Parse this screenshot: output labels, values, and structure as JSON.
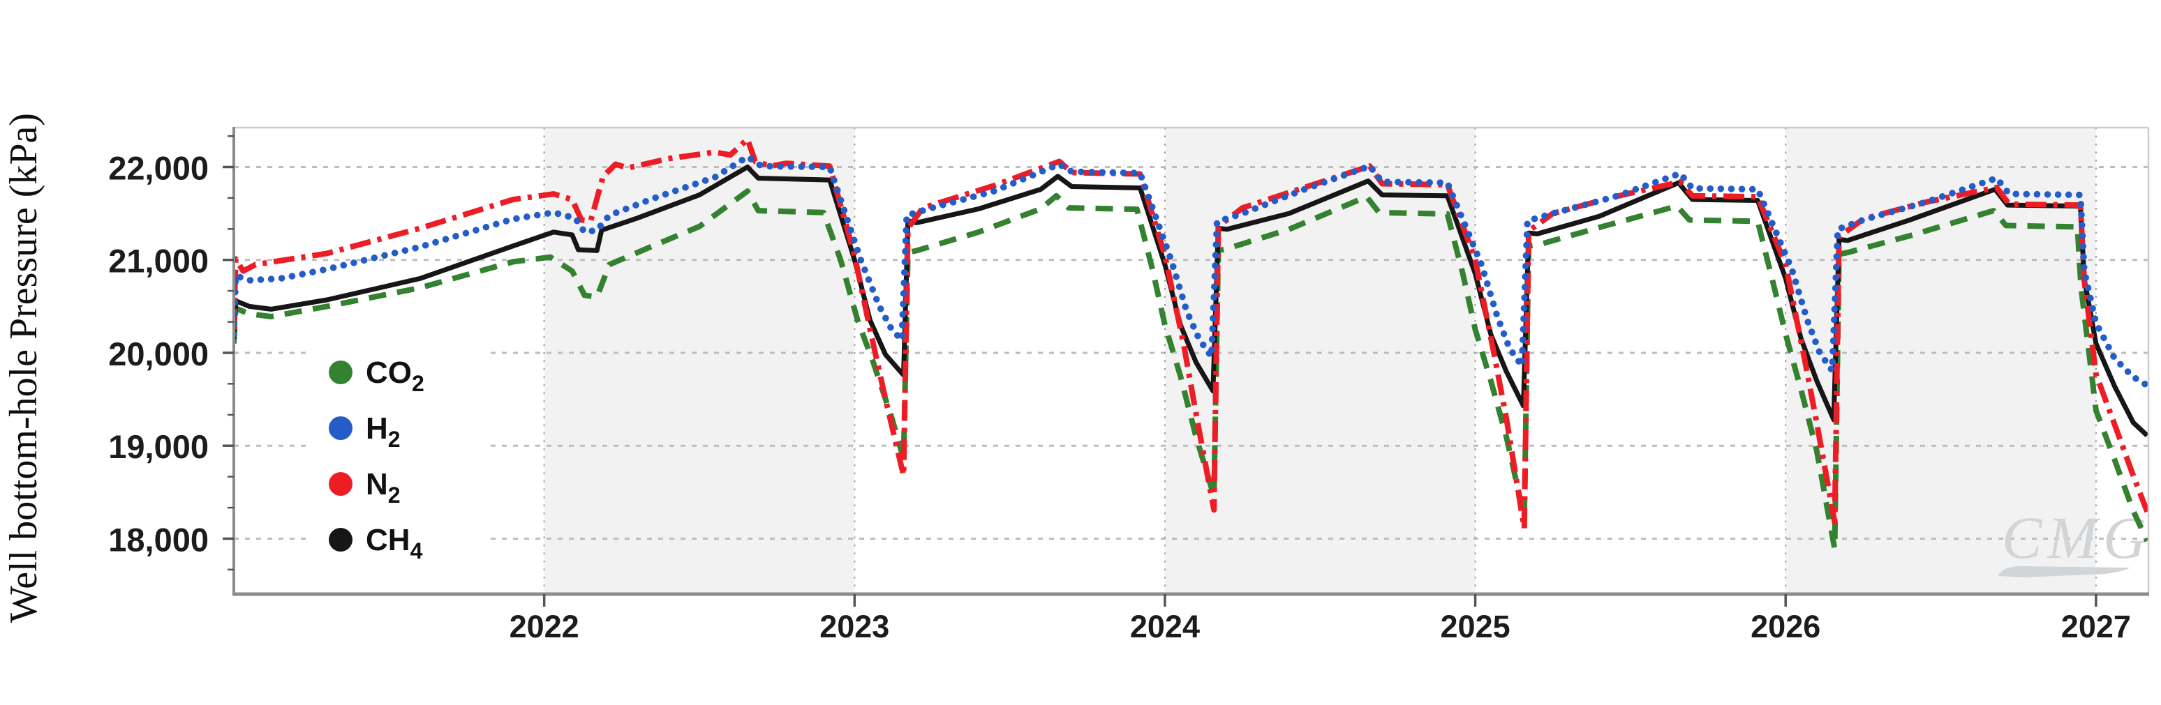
{
  "figure": {
    "y_axis_title": "Well bottom-hole Pressure (kPa)",
    "watermark_text": "CMG",
    "watermark_color": "#d2d5d8",
    "background": "#ffffff",
    "plot_background": "#ffffff",
    "band_color": "#f2f2f2",
    "h_grid_color": "#bdbdbd",
    "v_grid_color": "#9e9e9e",
    "spine_dark": "#8c8c8c",
    "spine_light": "#cccccc",
    "tick_color": "#555555"
  },
  "chart_data": {
    "type": "line",
    "title": "",
    "xlabel": "",
    "ylabel": "Well bottom-hole Pressure (kPa)",
    "x_domain": [
      2021.0,
      2027.169
    ],
    "y_domain": [
      17403,
      22424
    ],
    "x_ticks": [
      {
        "value": 2022,
        "label": "2022"
      },
      {
        "value": 2023,
        "label": "2023"
      },
      {
        "value": 2024,
        "label": "2024"
      },
      {
        "value": 2025,
        "label": "2025"
      },
      {
        "value": 2026,
        "label": "2026"
      },
      {
        "value": 2027,
        "label": "2027"
      }
    ],
    "y_ticks": [
      {
        "value": 18000,
        "label": "18,000"
      },
      {
        "value": 19000,
        "label": "19,000"
      },
      {
        "value": 20000,
        "label": "20,000"
      },
      {
        "value": 21000,
        "label": "21,000"
      },
      {
        "value": 22000,
        "label": "22,000"
      }
    ],
    "y_minor_ticks": [
      17667,
      18333,
      18667,
      19333,
      19667,
      20333,
      20667,
      21333,
      21667,
      22333
    ],
    "grid": {
      "horizontal": true,
      "vertical": true
    },
    "shaded_year_bands": [
      [
        2022,
        2023
      ],
      [
        2024,
        2025
      ],
      [
        2026,
        2027
      ]
    ],
    "legend_position": "inside-left-middle",
    "legend": [
      {
        "id": "co2",
        "base": "CO",
        "sub": "2",
        "color": "#348230"
      },
      {
        "id": "h2",
        "base": "H",
        "sub": "2",
        "color": "#245cc8"
      },
      {
        "id": "n2",
        "base": "N",
        "sub": "2",
        "color": "#ee1c24"
      },
      {
        "id": "ch4",
        "base": "CH",
        "sub": "4",
        "color": "#161616"
      }
    ],
    "series": [
      {
        "id": "co2",
        "name": "CO2",
        "color": "#348230",
        "line_style": "dashed",
        "points": [
          [
            2021.0,
            20100
          ],
          [
            2021.006,
            20480
          ],
          [
            2021.05,
            20420
          ],
          [
            2021.12,
            20390
          ],
          [
            2021.3,
            20500
          ],
          [
            2021.6,
            20700
          ],
          [
            2021.9,
            20980
          ],
          [
            2022.02,
            21030
          ],
          [
            2022.09,
            20880
          ],
          [
            2022.13,
            20620
          ],
          [
            2022.17,
            20600
          ],
          [
            2022.21,
            20950
          ],
          [
            2022.35,
            21150
          ],
          [
            2022.5,
            21360
          ],
          [
            2022.655,
            21740
          ],
          [
            2022.69,
            21530
          ],
          [
            2022.9,
            21510
          ],
          [
            2022.955,
            21000
          ],
          [
            2023.01,
            20350
          ],
          [
            2023.06,
            19900
          ],
          [
            2023.12,
            19300
          ],
          [
            2023.158,
            18860
          ],
          [
            2023.172,
            21080
          ],
          [
            2023.2,
            21100
          ],
          [
            2023.4,
            21300
          ],
          [
            2023.6,
            21550
          ],
          [
            2023.65,
            21690
          ],
          [
            2023.69,
            21560
          ],
          [
            2023.91,
            21545
          ],
          [
            2023.96,
            20900
          ],
          [
            2024.0,
            20300
          ],
          [
            2024.05,
            19750
          ],
          [
            2024.1,
            19100
          ],
          [
            2024.158,
            18460
          ],
          [
            2024.172,
            21100
          ],
          [
            2024.2,
            21120
          ],
          [
            2024.4,
            21330
          ],
          [
            2024.65,
            21680
          ],
          [
            2024.69,
            21510
          ],
          [
            2024.91,
            21495
          ],
          [
            2024.96,
            20850
          ],
          [
            2025.0,
            20250
          ],
          [
            2025.05,
            19700
          ],
          [
            2025.1,
            19100
          ],
          [
            2025.158,
            18230
          ],
          [
            2025.172,
            21150
          ],
          [
            2025.2,
            21160
          ],
          [
            2025.4,
            21350
          ],
          [
            2025.65,
            21580
          ],
          [
            2025.69,
            21430
          ],
          [
            2025.91,
            21415
          ],
          [
            2025.96,
            20750
          ],
          [
            2026.0,
            20200
          ],
          [
            2026.05,
            19600
          ],
          [
            2026.1,
            18950
          ],
          [
            2026.158,
            17890
          ],
          [
            2026.172,
            21060
          ],
          [
            2026.2,
            21080
          ],
          [
            2026.4,
            21260
          ],
          [
            2026.67,
            21530
          ],
          [
            2026.71,
            21370
          ],
          [
            2026.94,
            21355
          ],
          [
            2026.952,
            20700
          ],
          [
            2027.0,
            19380
          ],
          [
            2027.06,
            18850
          ],
          [
            2027.12,
            18300
          ],
          [
            2027.165,
            17975
          ]
        ]
      },
      {
        "id": "ch4",
        "name": "CH4",
        "color": "#161616",
        "line_style": "solid",
        "points": [
          [
            2021.0,
            20150
          ],
          [
            2021.006,
            20560
          ],
          [
            2021.05,
            20500
          ],
          [
            2021.12,
            20470
          ],
          [
            2021.3,
            20570
          ],
          [
            2021.6,
            20800
          ],
          [
            2021.9,
            21150
          ],
          [
            2022.03,
            21300
          ],
          [
            2022.09,
            21270
          ],
          [
            2022.11,
            21110
          ],
          [
            2022.17,
            21100
          ],
          [
            2022.185,
            21320
          ],
          [
            2022.3,
            21450
          ],
          [
            2022.5,
            21700
          ],
          [
            2022.655,
            22000
          ],
          [
            2022.69,
            21880
          ],
          [
            2022.92,
            21860
          ],
          [
            2023.0,
            21000
          ],
          [
            2023.05,
            20350
          ],
          [
            2023.1,
            19980
          ],
          [
            2023.158,
            19760
          ],
          [
            2023.172,
            21420
          ],
          [
            2023.2,
            21400
          ],
          [
            2023.4,
            21550
          ],
          [
            2023.6,
            21760
          ],
          [
            2023.655,
            21900
          ],
          [
            2023.7,
            21790
          ],
          [
            2023.92,
            21775
          ],
          [
            2024.0,
            20950
          ],
          [
            2024.05,
            20300
          ],
          [
            2024.1,
            19900
          ],
          [
            2024.155,
            19590
          ],
          [
            2024.172,
            21340
          ],
          [
            2024.2,
            21330
          ],
          [
            2024.4,
            21500
          ],
          [
            2024.655,
            21850
          ],
          [
            2024.7,
            21700
          ],
          [
            2024.91,
            21690
          ],
          [
            2025.0,
            20850
          ],
          [
            2025.05,
            20200
          ],
          [
            2025.1,
            19800
          ],
          [
            2025.155,
            19430
          ],
          [
            2025.172,
            21290
          ],
          [
            2025.2,
            21280
          ],
          [
            2025.4,
            21470
          ],
          [
            2025.655,
            21830
          ],
          [
            2025.7,
            21650
          ],
          [
            2025.91,
            21640
          ],
          [
            2026.0,
            20800
          ],
          [
            2026.05,
            20150
          ],
          [
            2026.1,
            19700
          ],
          [
            2026.155,
            19280
          ],
          [
            2026.172,
            21220
          ],
          [
            2026.2,
            21210
          ],
          [
            2026.4,
            21430
          ],
          [
            2026.675,
            21760
          ],
          [
            2026.715,
            21590
          ],
          [
            2026.95,
            21580
          ],
          [
            2026.962,
            20800
          ],
          [
            2027.0,
            20100
          ],
          [
            2027.06,
            19640
          ],
          [
            2027.12,
            19250
          ],
          [
            2027.165,
            19110
          ]
        ]
      },
      {
        "id": "n2",
        "name": "N2",
        "color": "#ee1c24",
        "line_style": "dashdot",
        "points": [
          [
            2021.0,
            20250
          ],
          [
            2021.006,
            21010
          ],
          [
            2021.03,
            20880
          ],
          [
            2021.07,
            20950
          ],
          [
            2021.3,
            21070
          ],
          [
            2021.6,
            21340
          ],
          [
            2021.9,
            21650
          ],
          [
            2022.03,
            21710
          ],
          [
            2022.09,
            21650
          ],
          [
            2022.12,
            21430
          ],
          [
            2022.15,
            21420
          ],
          [
            2022.19,
            21900
          ],
          [
            2022.23,
            22030
          ],
          [
            2022.27,
            21990
          ],
          [
            2022.4,
            22090
          ],
          [
            2022.55,
            22160
          ],
          [
            2022.6,
            22130
          ],
          [
            2022.655,
            22300
          ],
          [
            2022.68,
            22060
          ],
          [
            2022.73,
            22010
          ],
          [
            2022.78,
            22040
          ],
          [
            2022.92,
            22010
          ],
          [
            2023.0,
            21050
          ],
          [
            2023.05,
            20250
          ],
          [
            2023.1,
            19500
          ],
          [
            2023.158,
            18680
          ],
          [
            2023.172,
            21340
          ],
          [
            2023.22,
            21560
          ],
          [
            2023.45,
            21800
          ],
          [
            2023.66,
            22060
          ],
          [
            2023.7,
            21940
          ],
          [
            2023.92,
            21925
          ],
          [
            2024.0,
            21050
          ],
          [
            2024.06,
            20100
          ],
          [
            2024.1,
            19350
          ],
          [
            2024.158,
            18310
          ],
          [
            2024.172,
            21360
          ],
          [
            2024.25,
            21560
          ],
          [
            2024.45,
            21780
          ],
          [
            2024.66,
            22010
          ],
          [
            2024.7,
            21820
          ],
          [
            2024.91,
            21810
          ],
          [
            2025.0,
            21000
          ],
          [
            2025.06,
            20000
          ],
          [
            2025.1,
            19300
          ],
          [
            2025.158,
            18110
          ],
          [
            2025.172,
            21310
          ],
          [
            2025.25,
            21500
          ],
          [
            2025.45,
            21680
          ],
          [
            2025.66,
            21840
          ],
          [
            2025.7,
            21690
          ],
          [
            2025.91,
            21680
          ],
          [
            2026.0,
            20950
          ],
          [
            2026.06,
            19950
          ],
          [
            2026.1,
            19250
          ],
          [
            2026.158,
            18180
          ],
          [
            2026.172,
            21250
          ],
          [
            2026.25,
            21440
          ],
          [
            2026.45,
            21620
          ],
          [
            2026.68,
            21780
          ],
          [
            2026.72,
            21600
          ],
          [
            2026.95,
            21590
          ],
          [
            2026.962,
            20780
          ],
          [
            2027.0,
            19770
          ],
          [
            2027.06,
            19230
          ],
          [
            2027.12,
            18680
          ],
          [
            2027.165,
            18290
          ]
        ]
      },
      {
        "id": "h2",
        "name": "H2",
        "color": "#245cc8",
        "line_style": "dotted",
        "points": [
          [
            2021.0,
            20200
          ],
          [
            2021.006,
            20830
          ],
          [
            2021.05,
            20780
          ],
          [
            2021.15,
            20800
          ],
          [
            2021.3,
            20900
          ],
          [
            2021.6,
            21140
          ],
          [
            2021.9,
            21440
          ],
          [
            2022.03,
            21510
          ],
          [
            2022.1,
            21450
          ],
          [
            2022.13,
            21300
          ],
          [
            2022.17,
            21320
          ],
          [
            2022.21,
            21480
          ],
          [
            2022.35,
            21660
          ],
          [
            2022.55,
            21890
          ],
          [
            2022.655,
            22110
          ],
          [
            2022.7,
            22010
          ],
          [
            2022.92,
            22000
          ],
          [
            2023.02,
            21000
          ],
          [
            2023.08,
            20500
          ],
          [
            2023.12,
            20250
          ],
          [
            2023.152,
            20140
          ],
          [
            2023.168,
            21480
          ],
          [
            2023.25,
            21560
          ],
          [
            2023.45,
            21740
          ],
          [
            2023.66,
            22030
          ],
          [
            2023.7,
            21950
          ],
          [
            2023.92,
            21935
          ],
          [
            2024.02,
            21000
          ],
          [
            2024.07,
            20450
          ],
          [
            2024.11,
            20150
          ],
          [
            2024.15,
            19960
          ],
          [
            2024.168,
            21410
          ],
          [
            2024.25,
            21500
          ],
          [
            2024.45,
            21760
          ],
          [
            2024.66,
            22010
          ],
          [
            2024.7,
            21840
          ],
          [
            2024.91,
            21830
          ],
          [
            2025.02,
            20950
          ],
          [
            2025.07,
            20400
          ],
          [
            2025.11,
            20050
          ],
          [
            2025.15,
            19860
          ],
          [
            2025.168,
            21420
          ],
          [
            2025.25,
            21500
          ],
          [
            2025.45,
            21680
          ],
          [
            2025.66,
            21930
          ],
          [
            2025.7,
            21770
          ],
          [
            2025.91,
            21760
          ],
          [
            2026.02,
            20900
          ],
          [
            2026.07,
            20350
          ],
          [
            2026.11,
            20000
          ],
          [
            2026.15,
            19810
          ],
          [
            2026.168,
            21330
          ],
          [
            2026.25,
            21430
          ],
          [
            2026.45,
            21620
          ],
          [
            2026.68,
            21880
          ],
          [
            2026.72,
            21710
          ],
          [
            2026.95,
            21700
          ],
          [
            2026.962,
            20880
          ],
          [
            2027.0,
            20320
          ],
          [
            2027.06,
            19940
          ],
          [
            2027.12,
            19740
          ],
          [
            2027.165,
            19650
          ]
        ]
      }
    ]
  }
}
